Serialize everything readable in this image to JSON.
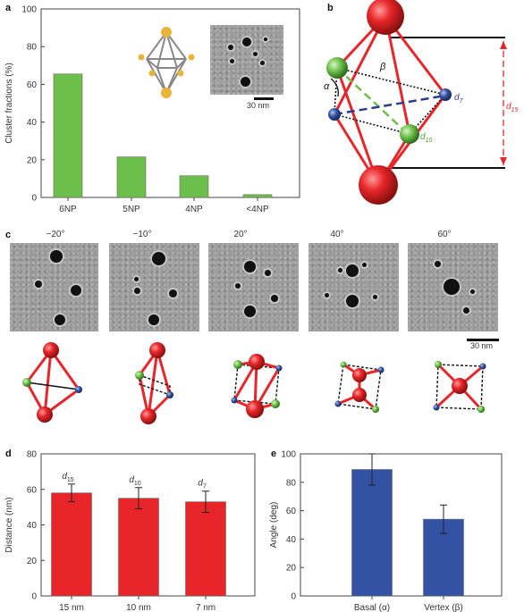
{
  "panels": {
    "a": "a",
    "b": "b",
    "c": "c",
    "d": "d",
    "e": "e"
  },
  "chart_data": [
    {
      "type": "bar",
      "panel": "a",
      "categories": [
        "6NP",
        "5NP",
        "4NP",
        "<4NP"
      ],
      "values": [
        65.5,
        21.5,
        11.5,
        1.5
      ],
      "ylabel": "Cluster fractions (%)",
      "xlabel": "",
      "ylim": [
        0,
        100
      ],
      "yticks": [
        "0",
        "20",
        "40",
        "60",
        "80",
        "100"
      ],
      "bar_color": "#6dbf4b",
      "inset_scale": "30 nm"
    },
    {
      "type": "bar",
      "panel": "d",
      "categories": [
        "15 nm",
        "10 nm",
        "7 nm"
      ],
      "values": [
        58,
        55,
        53
      ],
      "errors": [
        5,
        6,
        6
      ],
      "bar_labels": [
        "d",
        "d",
        "d"
      ],
      "bar_label_subs": [
        "15",
        "10",
        "7"
      ],
      "ylabel": "Distance (nm)",
      "xlabel": "",
      "ylim": [
        0,
        80
      ],
      "yticks": [
        "0",
        "20",
        "40",
        "60",
        "80"
      ],
      "bar_color": "#e8262a"
    },
    {
      "type": "bar",
      "panel": "e",
      "categories": [
        "Basal (α)",
        "Vertex (β)"
      ],
      "values": [
        89,
        54
      ],
      "errors": [
        11,
        10
      ],
      "ylabel": "Angle (deg)",
      "xlabel": "",
      "ylim": [
        0,
        100
      ],
      "yticks": [
        "0",
        "20",
        "40",
        "60",
        "80",
        "100"
      ],
      "bar_color": "#3352a4"
    }
  ],
  "schematic": {
    "alpha": "α",
    "beta": "β",
    "d7": "d",
    "d7_sub": "7",
    "d10": "d",
    "d10_sub": "10",
    "d15": "d",
    "d15_sub": "15"
  },
  "tilt_series": {
    "angles": [
      "−20°",
      "−10°",
      "20°",
      "40°",
      "60°"
    ],
    "scale_bar": "30 nm"
  },
  "colors": {
    "red_particle": "#e8262a",
    "green_particle": "#6dbf4b",
    "blue_particle": "#3352a4"
  }
}
